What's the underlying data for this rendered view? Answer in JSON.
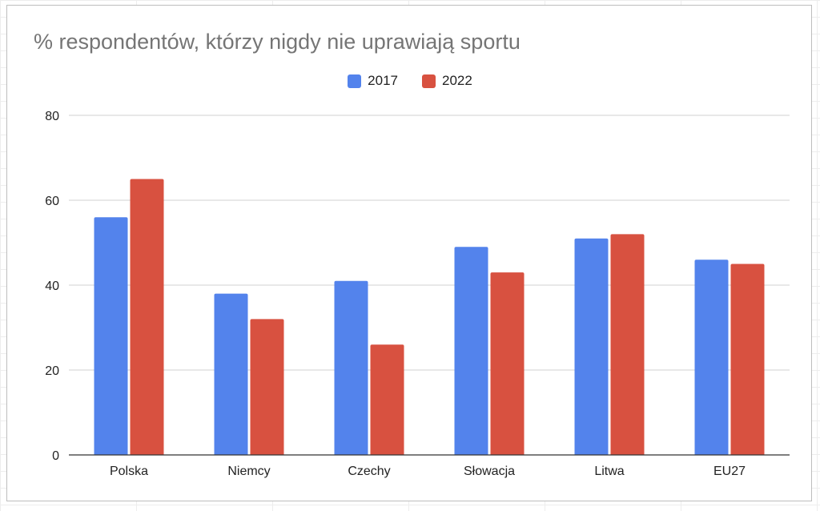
{
  "chart_data": {
    "type": "bar",
    "title": "% respondentów, którzy nigdy nie uprawiają sportu",
    "categories": [
      "Polska",
      "Niemcy",
      "Czechy",
      "Słowacja",
      "Litwa",
      "EU27"
    ],
    "series": [
      {
        "name": "2017",
        "color": "#5383EC",
        "values": [
          56,
          38,
          41,
          49,
          51,
          46
        ]
      },
      {
        "name": "2022",
        "color": "#D85140",
        "values": [
          65,
          32,
          26,
          43,
          52,
          45
        ]
      }
    ],
    "yticks": [
      0,
      20,
      40,
      60,
      80
    ],
    "ylim": [
      0,
      80
    ],
    "grid": true,
    "legend_position": "top-center"
  }
}
